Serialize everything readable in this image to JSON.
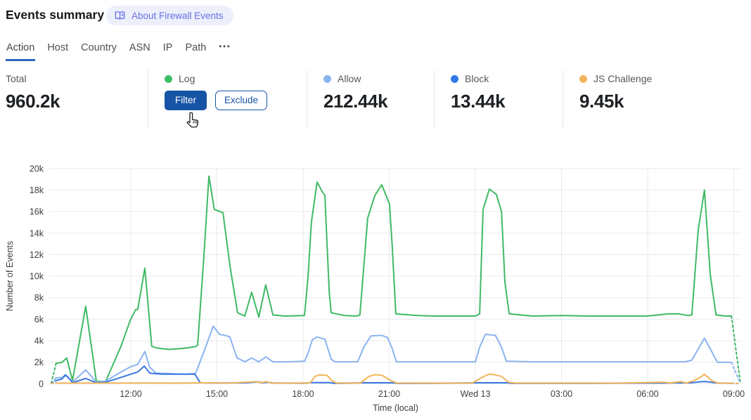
{
  "header": {
    "title": "Events summary",
    "about_badge": "About Firewall Events"
  },
  "tabs": {
    "items": [
      {
        "label": "Action",
        "active": true
      },
      {
        "label": "Host"
      },
      {
        "label": "Country"
      },
      {
        "label": "ASN"
      },
      {
        "label": "IP"
      },
      {
        "label": "Path"
      },
      {
        "label": "•••"
      }
    ]
  },
  "stats": {
    "total": {
      "label": "Total",
      "value": "960.2k"
    },
    "log": {
      "label": "Log",
      "dot_color": "#3cbd64",
      "filter_label": "Filter",
      "exclude_label": "Exclude"
    },
    "allow": {
      "label": "Allow",
      "value": "212.44k",
      "dot_color": "#8ab4f0"
    },
    "block": {
      "label": "Block",
      "value": "13.44k",
      "dot_color": "#2f7ce8"
    },
    "js_challenge": {
      "label": "JS Challenge",
      "value": "9.45k",
      "dot_color": "#f4b45c"
    }
  },
  "cursor": {
    "shape": "hand-pointer"
  },
  "chart_data": {
    "type": "line",
    "xlabel": "Time (local)",
    "ylabel": "Number of Events",
    "x_unit_note": "decimal hours; 24 = Wed 13 00:00",
    "xlim": [
      9.1,
      33.3
    ],
    "ylim": [
      0,
      20000
    ],
    "grid": true,
    "legend_position": "none (legend via stat cards above)",
    "x_ticks": [
      {
        "t": 12,
        "label": "12:00"
      },
      {
        "t": 15,
        "label": "15:00"
      },
      {
        "t": 18,
        "label": "18:00"
      },
      {
        "t": 21,
        "label": "21:00"
      },
      {
        "t": 24,
        "label": "Wed 13"
      },
      {
        "t": 27,
        "label": "03:00"
      },
      {
        "t": 30,
        "label": "06:00"
      },
      {
        "t": 33,
        "label": "09:00"
      }
    ],
    "y_ticks": [
      {
        "v": 0,
        "label": "0"
      },
      {
        "v": 2000,
        "label": "2k"
      },
      {
        "v": 4000,
        "label": "4k"
      },
      {
        "v": 6000,
        "label": "6k"
      },
      {
        "v": 8000,
        "label": "8k"
      },
      {
        "v": 10000,
        "label": "10k"
      },
      {
        "v": 12000,
        "label": "12k"
      },
      {
        "v": 14000,
        "label": "14k"
      },
      {
        "v": 16000,
        "label": "16k"
      },
      {
        "v": 18000,
        "label": "18k"
      },
      {
        "v": 20000,
        "label": "20k"
      }
    ],
    "series": [
      {
        "name": "Log",
        "color": "#3fba64",
        "dash_in": [
          [
            9.23,
            50
          ],
          [
            9.4,
            1900
          ]
        ],
        "points": [
          [
            9.4,
            1900
          ],
          [
            9.6,
            2000
          ],
          [
            9.77,
            2400
          ],
          [
            9.97,
            300
          ],
          [
            10.43,
            7200
          ],
          [
            10.8,
            250
          ],
          [
            11.12,
            200
          ],
          [
            11.66,
            3500
          ],
          [
            11.98,
            5900
          ],
          [
            12.17,
            6900
          ],
          [
            12.24,
            6900
          ],
          [
            12.49,
            10750
          ],
          [
            12.73,
            3500
          ],
          [
            12.88,
            3350
          ],
          [
            13.32,
            3200
          ],
          [
            13.86,
            3300
          ],
          [
            14.25,
            3450
          ],
          [
            14.33,
            3600
          ],
          [
            14.55,
            12000
          ],
          [
            14.72,
            19300
          ],
          [
            14.91,
            16200
          ],
          [
            15.21,
            15900
          ],
          [
            15.45,
            11000
          ],
          [
            15.72,
            6600
          ],
          [
            15.97,
            6300
          ],
          [
            16.21,
            8500
          ],
          [
            16.46,
            6200
          ],
          [
            16.7,
            9200
          ],
          [
            16.95,
            6400
          ],
          [
            17.36,
            6300
          ],
          [
            18.05,
            6350
          ],
          [
            18.17,
            9800
          ],
          [
            18.29,
            15000
          ],
          [
            18.49,
            18750
          ],
          [
            18.66,
            17900
          ],
          [
            18.76,
            17500
          ],
          [
            18.91,
            8500
          ],
          [
            18.98,
            6600
          ],
          [
            19.44,
            6350
          ],
          [
            19.86,
            6300
          ],
          [
            19.98,
            6400
          ],
          [
            20.25,
            15400
          ],
          [
            20.5,
            17500
          ],
          [
            20.74,
            18500
          ],
          [
            21.01,
            16700
          ],
          [
            21.1,
            13000
          ],
          [
            21.23,
            6500
          ],
          [
            22.0,
            6350
          ],
          [
            22.63,
            6300
          ],
          [
            23.3,
            6300
          ],
          [
            24.0,
            6300
          ],
          [
            24.15,
            6500
          ],
          [
            24.27,
            16200
          ],
          [
            24.49,
            18100
          ],
          [
            24.73,
            17600
          ],
          [
            24.91,
            16000
          ],
          [
            25.03,
            9400
          ],
          [
            25.18,
            6500
          ],
          [
            26.0,
            6300
          ],
          [
            27.0,
            6350
          ],
          [
            28.0,
            6300
          ],
          [
            29.0,
            6300
          ],
          [
            30.0,
            6300
          ],
          [
            30.71,
            6500
          ],
          [
            31.08,
            6500
          ],
          [
            31.4,
            6350
          ],
          [
            31.54,
            6400
          ],
          [
            31.76,
            14300
          ],
          [
            31.98,
            18000
          ],
          [
            32.18,
            10200
          ],
          [
            32.38,
            6400
          ],
          [
            32.72,
            6300
          ],
          [
            32.92,
            6300
          ]
        ],
        "dash_out": [
          [
            32.92,
            6300
          ],
          [
            33.23,
            50
          ]
        ]
      },
      {
        "name": "Allow",
        "color": "#8ab4f0",
        "dash_in": [
          [
            9.23,
            50
          ],
          [
            9.4,
            550
          ]
        ],
        "points": [
          [
            9.4,
            550
          ],
          [
            9.6,
            600
          ],
          [
            9.77,
            750
          ],
          [
            9.97,
            150
          ],
          [
            10.43,
            1300
          ],
          [
            10.8,
            150
          ],
          [
            11.12,
            250
          ],
          [
            11.66,
            1100
          ],
          [
            12.0,
            1600
          ],
          [
            12.24,
            1800
          ],
          [
            12.49,
            3000
          ],
          [
            12.66,
            1550
          ],
          [
            12.88,
            1000
          ],
          [
            13.32,
            950
          ],
          [
            13.86,
            900
          ],
          [
            14.25,
            950
          ],
          [
            14.55,
            3000
          ],
          [
            14.87,
            5350
          ],
          [
            15.09,
            4600
          ],
          [
            15.36,
            4450
          ],
          [
            15.45,
            4350
          ],
          [
            15.7,
            2400
          ],
          [
            15.97,
            2050
          ],
          [
            16.21,
            2400
          ],
          [
            16.46,
            2050
          ],
          [
            16.7,
            2500
          ],
          [
            16.95,
            2050
          ],
          [
            17.5,
            2050
          ],
          [
            18.05,
            2100
          ],
          [
            18.17,
            2800
          ],
          [
            18.32,
            4100
          ],
          [
            18.49,
            4350
          ],
          [
            18.76,
            4150
          ],
          [
            18.98,
            2300
          ],
          [
            19.1,
            2050
          ],
          [
            19.9,
            2050
          ],
          [
            20.13,
            3500
          ],
          [
            20.37,
            4450
          ],
          [
            20.74,
            4500
          ],
          [
            20.94,
            4300
          ],
          [
            21.1,
            3300
          ],
          [
            21.25,
            2050
          ],
          [
            22.5,
            2050
          ],
          [
            24.0,
            2050
          ],
          [
            24.15,
            3400
          ],
          [
            24.35,
            4600
          ],
          [
            24.7,
            4500
          ],
          [
            24.91,
            3400
          ],
          [
            25.08,
            2100
          ],
          [
            26.0,
            2050
          ],
          [
            28.0,
            2050
          ],
          [
            30.0,
            2050
          ],
          [
            31.3,
            2050
          ],
          [
            31.54,
            2200
          ],
          [
            31.98,
            4250
          ],
          [
            32.23,
            3000
          ],
          [
            32.43,
            2000
          ],
          [
            32.92,
            2000
          ]
        ],
        "dash_out": [
          [
            32.92,
            2000
          ],
          [
            33.23,
            50
          ]
        ]
      },
      {
        "name": "Block",
        "color": "#3a77e0",
        "dash_in": [
          [
            9.23,
            30
          ],
          [
            9.4,
            300
          ]
        ],
        "points": [
          [
            9.4,
            300
          ],
          [
            9.6,
            450
          ],
          [
            9.72,
            850
          ],
          [
            9.9,
            350
          ],
          [
            9.97,
            100
          ],
          [
            10.43,
            500
          ],
          [
            10.8,
            100
          ],
          [
            11.12,
            150
          ],
          [
            11.66,
            600
          ],
          [
            12.24,
            1100
          ],
          [
            12.47,
            1650
          ],
          [
            12.66,
            1000
          ],
          [
            13.08,
            900
          ],
          [
            13.86,
            900
          ],
          [
            14.23,
            900
          ],
          [
            14.42,
            100
          ],
          [
            15.0,
            80
          ],
          [
            16.0,
            100
          ],
          [
            16.44,
            180
          ],
          [
            16.58,
            100
          ],
          [
            16.8,
            150
          ],
          [
            16.95,
            80
          ],
          [
            18.0,
            60
          ],
          [
            18.29,
            120
          ],
          [
            18.91,
            120
          ],
          [
            19.1,
            50
          ],
          [
            20.1,
            100
          ],
          [
            21.1,
            100
          ],
          [
            21.3,
            50
          ],
          [
            22.5,
            50
          ],
          [
            24.1,
            100
          ],
          [
            25.1,
            100
          ],
          [
            25.3,
            50
          ],
          [
            27.0,
            50
          ],
          [
            28.0,
            50
          ],
          [
            30.5,
            70
          ],
          [
            31.5,
            100
          ],
          [
            31.98,
            220
          ],
          [
            32.4,
            80
          ],
          [
            32.92,
            50
          ]
        ],
        "dash_out": [
          [
            32.92,
            50
          ],
          [
            33.23,
            20
          ]
        ]
      },
      {
        "name": "JS Challenge",
        "color": "#f2b45a",
        "dash_in": [
          [
            9.23,
            30
          ],
          [
            9.4,
            70
          ]
        ],
        "points": [
          [
            9.4,
            70
          ],
          [
            10.5,
            70
          ],
          [
            11.5,
            70
          ],
          [
            12.5,
            80
          ],
          [
            13.5,
            70
          ],
          [
            14.6,
            100
          ],
          [
            15.5,
            80
          ],
          [
            16.37,
            200
          ],
          [
            16.53,
            100
          ],
          [
            16.73,
            200
          ],
          [
            16.9,
            70
          ],
          [
            17.8,
            70
          ],
          [
            18.25,
            100
          ],
          [
            18.42,
            700
          ],
          [
            18.56,
            820
          ],
          [
            18.83,
            800
          ],
          [
            19.0,
            300
          ],
          [
            19.15,
            80
          ],
          [
            20.0,
            80
          ],
          [
            20.3,
            700
          ],
          [
            20.5,
            850
          ],
          [
            20.74,
            800
          ],
          [
            21.06,
            300
          ],
          [
            21.25,
            80
          ],
          [
            22.5,
            70
          ],
          [
            23.9,
            80
          ],
          [
            24.3,
            700
          ],
          [
            24.49,
            900
          ],
          [
            24.66,
            850
          ],
          [
            24.91,
            700
          ],
          [
            25.15,
            150
          ],
          [
            25.4,
            70
          ],
          [
            27.0,
            70
          ],
          [
            29.0,
            70
          ],
          [
            30.55,
            150
          ],
          [
            30.8,
            80
          ],
          [
            31.15,
            200
          ],
          [
            31.35,
            80
          ],
          [
            31.61,
            300
          ],
          [
            31.83,
            600
          ],
          [
            31.98,
            900
          ],
          [
            32.23,
            300
          ],
          [
            32.43,
            80
          ],
          [
            32.92,
            60
          ]
        ],
        "dash_out": [
          [
            32.92,
            60
          ],
          [
            33.23,
            20
          ]
        ]
      }
    ]
  }
}
